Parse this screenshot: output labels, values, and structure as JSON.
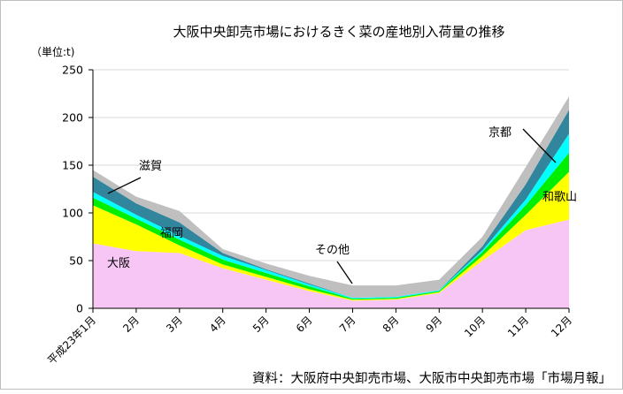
{
  "chart_data": {
    "type": "area",
    "stacked": true,
    "title": "大阪中央卸売市場におけるきく菜の産地別入荷量の推移",
    "ylabel": "（単位:t)",
    "xlabel": "",
    "source": "資料：大阪府中央卸売市場、大阪市中央卸売市場「市場月報」",
    "ylim": [
      0,
      250
    ],
    "yticks": [
      0,
      50,
      100,
      150,
      200,
      250
    ],
    "grid": true,
    "legend": "none",
    "categories": [
      "平成23年1月",
      "2月",
      "3月",
      "4月",
      "5月",
      "6月",
      "7月",
      "8月",
      "9月",
      "10月",
      "11月",
      "12月"
    ],
    "series": [
      {
        "name": "大阪",
        "color": "#f8c6f5",
        "values": [
          68,
          60,
          58,
          42,
          30,
          18,
          8,
          9,
          16,
          50,
          82,
          93
        ]
      },
      {
        "name": "和歌山",
        "color": "#ffff00",
        "values": [
          40,
          28,
          8,
          4,
          3,
          2,
          1,
          1,
          1,
          5,
          16,
          50
        ]
      },
      {
        "name": "福岡",
        "color": "#00ee00",
        "values": [
          8,
          6,
          6,
          5,
          4,
          3,
          1,
          1,
          1,
          4,
          10,
          20
        ]
      },
      {
        "name": "",
        "color": "#00ffff",
        "values": [
          6,
          4,
          4,
          4,
          3,
          2,
          1,
          1,
          1,
          2,
          6,
          20
        ]
      },
      {
        "name": "京都",
        "color": "#31859c",
        "values": [
          16,
          12,
          14,
          3,
          1,
          1,
          0,
          0,
          0,
          4,
          16,
          25
        ]
      },
      {
        "name": "その他",
        "color": "#bfbfbf",
        "values": [
          7,
          7,
          12,
          4,
          6,
          8,
          13,
          12,
          11,
          10,
          18,
          14
        ]
      }
    ],
    "annotations": [
      {
        "text": "滋賀"
      },
      {
        "text": "京都"
      },
      {
        "text": "和歌山"
      },
      {
        "text": "福岡"
      },
      {
        "text": "その他"
      },
      {
        "text": "大阪"
      }
    ]
  }
}
